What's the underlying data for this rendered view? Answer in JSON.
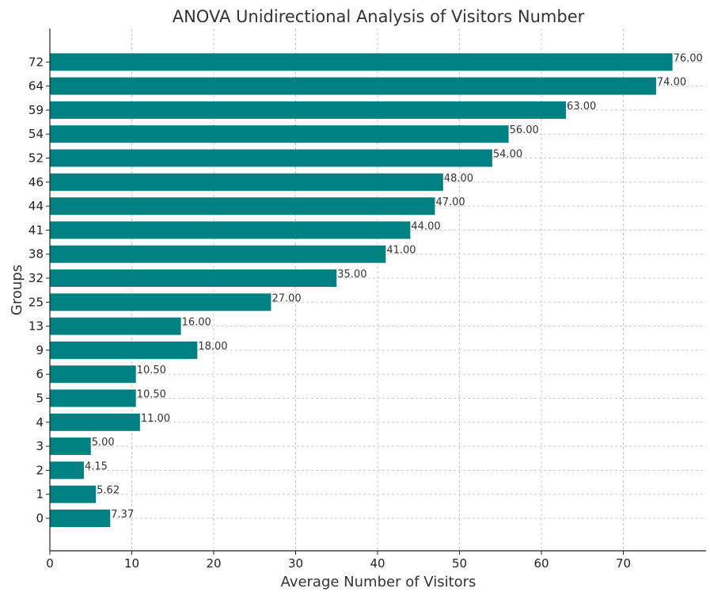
{
  "chart_data": {
    "type": "bar",
    "orientation": "horizontal",
    "title": "ANOVA Unidirectional Analysis of Visitors Number",
    "xlabel": "Average Number of Visitors",
    "ylabel": "Groups",
    "xlim": [
      0,
      80
    ],
    "xticks": [
      0,
      10,
      20,
      30,
      40,
      50,
      60,
      70
    ],
    "grid": true,
    "bar_color": "#008080",
    "categories": [
      "0",
      "1",
      "2",
      "3",
      "4",
      "5",
      "6",
      "9",
      "13",
      "25",
      "32",
      "38",
      "41",
      "44",
      "46",
      "52",
      "54",
      "59",
      "64",
      "72"
    ],
    "values": [
      7.37,
      5.62,
      4.15,
      5.0,
      11.0,
      10.5,
      10.5,
      18.0,
      16.0,
      27.0,
      35.0,
      41.0,
      44.0,
      47.0,
      48.0,
      54.0,
      56.0,
      63.0,
      74.0,
      76.0
    ],
    "value_labels": [
      "7.37",
      "5.62",
      "4.15",
      "5.00",
      "11.00",
      "10.50",
      "10.50",
      "18.00",
      "16.00",
      "27.00",
      "35.00",
      "41.00",
      "44.00",
      "47.00",
      "48.00",
      "54.00",
      "56.00",
      "63.00",
      "74.00",
      "76.00"
    ]
  }
}
